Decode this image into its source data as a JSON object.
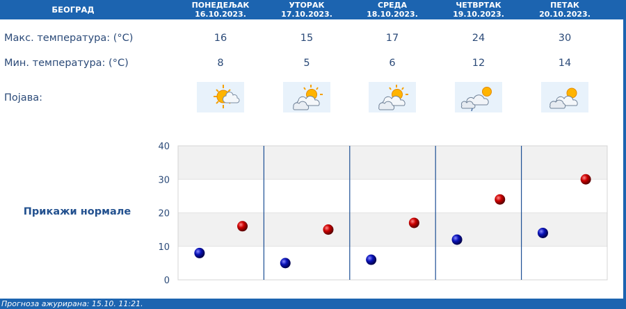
{
  "header": {
    "city": "БЕОГРАД",
    "days": [
      {
        "name": "ПОНЕДЕЉАК",
        "date": "16.10.2023."
      },
      {
        "name": "УТОРАК",
        "date": "17.10.2023."
      },
      {
        "name": "СРЕДА",
        "date": "18.10.2023."
      },
      {
        "name": "ЧЕТВРТАК",
        "date": "19.10.2023."
      },
      {
        "name": "ПЕТАК",
        "date": "20.10.2023."
      }
    ]
  },
  "rows": {
    "max_label": "Макс. температура: (°C)",
    "min_label": "Мин. температура: (°C)",
    "phenomenon_label": "Појава:",
    "max": [
      "16",
      "15",
      "17",
      "24",
      "30"
    ],
    "min": [
      "8",
      "5",
      "6",
      "12",
      "14"
    ],
    "icons": [
      "sun-cloud-icon",
      "partly-cloudy-icon",
      "partly-cloudy-icon",
      "cloud-drizzle-icon",
      "cloudy-sun-icon"
    ]
  },
  "normals_label": "Прикажи нормале",
  "colors": {
    "header": "#1c64b0",
    "max_dot": "#cc0000",
    "min_dot": "#0a13b8",
    "text": "#2b4a78"
  },
  "chart_data": {
    "type": "scatter",
    "categories": [
      "16.10.2023.",
      "17.10.2023.",
      "18.10.2023.",
      "19.10.2023.",
      "20.10.2023."
    ],
    "series": [
      {
        "values": [
          8,
          5,
          6,
          12,
          14
        ],
        "color": "#0a13b8"
      },
      {
        "values": [
          16,
          15,
          17,
          24,
          30
        ],
        "color": "#cc0000"
      }
    ],
    "ylim": [
      0,
      40
    ],
    "yticks": [
      "0",
      "10",
      "20",
      "30",
      "40"
    ],
    "grid": true
  },
  "footer": "Прогноза ажурирана:  15.10.  11:21."
}
